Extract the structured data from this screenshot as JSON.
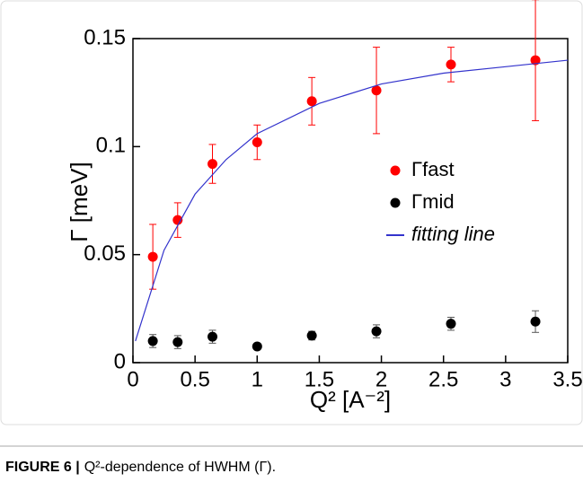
{
  "chart_data": {
    "type": "scatter",
    "x_label": "Q² [A⁻²]",
    "y_label": "Γ [meV]",
    "xlim": [
      0,
      3.5
    ],
    "xticks": [
      0,
      0.5,
      1,
      1.5,
      2,
      2.5,
      3,
      3.5
    ],
    "ylim": [
      0,
      0.15
    ],
    "yticks": [
      0,
      0.05,
      0.1,
      0.15
    ],
    "legend": "right",
    "series": [
      {
        "name": "Γfast",
        "type": "scatter",
        "color": "#ff0000",
        "x": [
          0.16,
          0.36,
          0.64,
          1.0,
          1.44,
          1.96,
          2.56,
          3.24
        ],
        "values": [
          0.049,
          0.066,
          0.092,
          0.102,
          0.121,
          0.126,
          0.138,
          0.14
        ],
        "errors": [
          0.015,
          0.008,
          0.009,
          0.008,
          0.011,
          0.02,
          0.008,
          0.028
        ]
      },
      {
        "name": "Γmid",
        "type": "scatter",
        "color": "#000000",
        "x": [
          0.16,
          0.36,
          0.64,
          1.0,
          1.44,
          1.96,
          2.56,
          3.24
        ],
        "values": [
          0.01,
          0.0095,
          0.012,
          0.0075,
          0.0125,
          0.0145,
          0.018,
          0.019
        ],
        "errors": [
          0.003,
          0.003,
          0.003,
          0.001,
          0.002,
          0.003,
          0.003,
          0.005
        ]
      },
      {
        "name": "fitting line",
        "type": "line",
        "color": "#3333cc",
        "x": [
          0.02,
          0.25,
          0.5,
          0.75,
          1,
          1.5,
          2,
          2.5,
          3,
          3.5
        ],
        "values": [
          0.01,
          0.052,
          0.078,
          0.094,
          0.106,
          0.12,
          0.129,
          0.134,
          0.137,
          0.14
        ]
      }
    ]
  },
  "caption_label": "FIGURE 6 |",
  "caption": "Q²-dependence of HWHM (Γ)."
}
